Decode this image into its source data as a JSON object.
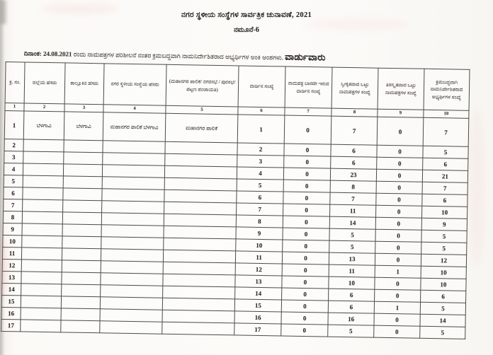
{
  "page": {
    "title": "ನಗರ ಸ್ಥಳೀಯ ಸಂಸ್ಥೆಗಳ ಸಾರ್ವತ್ರಿಕ ಚುನಾವಣೆ, 2021",
    "form_no": "ನಮೂನೆ-6",
    "date_label": "ದಿನಾಂಕ:",
    "date_value": "24.08.2021",
    "date_text": "ರಂದು ನಾಮಪತ್ರಗಳ ಪರಿಶೀಲನೆ ನಂತರ ಕ್ರಮಬದ್ಧವಾಗಿ ನಾಮನಿರ್ದೇಶಿತರಾದ ಅಭ್ಯರ್ಥಿಗಳ ಅಂಕಿ ಅಂಶಗಳು.",
    "emphasis": "ವಾರ್ಡುವಾರು"
  },
  "table": {
    "headers": [
      "ಕ್ರ. ಸಂ.",
      "ಜಿಲ್ಲೆಯ ಹೆಸರು",
      "ತಾಲ್ಲೂಕಿನ ಹೆಸರು",
      "ನಗರ ಸ್ಥಳೀಯ ಸಂಸ್ಥೆಯ ಹೆಸರು",
      "(ಮಹಾನಗರ ಪಾಲಿಕೆ/ ನಗರಸಭೆ / ಪುರಸಭೆ/ ಪಟ್ಟಣ ಪಂಚಾಯತಿ)",
      "ವಾರ್ಡಿನ ಸಂಖ್ಯೆ",
      "ನಾಮಪತ್ರ ಬಾರದೇ ಇರುವ ವಾರ್ಡಿನ ಸಂಖ್ಯೆ",
      "ಸ್ವೀಕೃತವಾದ ಒಟ್ಟು ನಾಮಪತ್ರಗಳ ಸಂಖ್ಯೆ",
      "ತಿರಸ್ಕೃತವಾದ ಒಟ್ಟು ನಾಮಪತ್ರಗಳ ಸಂಖ್ಯೆ",
      "ಕ್ರಮಬದ್ಧವಾಗಿ ನಾಮನಿರ್ದೇಶಿತರಾದ ಅಭ್ಯರ್ಥಿಗಳ ಸಂಖ್ಯೆ"
    ],
    "column_numbers": [
      "1",
      "2",
      "3",
      "4",
      "5",
      "6",
      "7",
      "8",
      "9",
      "10"
    ],
    "rows": [
      [
        "1",
        "ಬೆಳಗಾವಿ",
        "ಬೆಳಗಾವಿ",
        "ಮಹಾನಗರ ಪಾಲಿಕೆ ಬೆಳಗಾವಿ",
        "ಮಹಾನಗರ ಪಾಲಿಕೆ",
        "1",
        "0",
        "7",
        "0",
        "7"
      ],
      [
        "2",
        "",
        "",
        "",
        "",
        "2",
        "0",
        "6",
        "0",
        "5"
      ],
      [
        "3",
        "",
        "",
        "",
        "",
        "3",
        "0",
        "6",
        "0",
        "6"
      ],
      [
        "4",
        "",
        "",
        "",
        "",
        "4",
        "0",
        "23",
        "0",
        "21"
      ],
      [
        "5",
        "",
        "",
        "",
        "",
        "5",
        "0",
        "8",
        "0",
        "7"
      ],
      [
        "6",
        "",
        "",
        "",
        "",
        "6",
        "0",
        "7",
        "0",
        "6"
      ],
      [
        "7",
        "",
        "",
        "",
        "",
        "7",
        "0",
        "11",
        "0",
        "10"
      ],
      [
        "8",
        "",
        "",
        "",
        "",
        "8",
        "0",
        "14",
        "0",
        "9"
      ],
      [
        "9",
        "",
        "",
        "",
        "",
        "9",
        "0",
        "5",
        "0",
        "5"
      ],
      [
        "10",
        "",
        "",
        "",
        "",
        "10",
        "0",
        "5",
        "0",
        "5"
      ],
      [
        "11",
        "",
        "",
        "",
        "",
        "11",
        "0",
        "13",
        "0",
        "12"
      ],
      [
        "12",
        "",
        "",
        "",
        "",
        "12",
        "0",
        "11",
        "1",
        "10"
      ],
      [
        "13",
        "",
        "",
        "",
        "",
        "13",
        "0",
        "10",
        "0",
        "10"
      ],
      [
        "14",
        "",
        "",
        "",
        "",
        "14",
        "0",
        "6",
        "0",
        "6"
      ],
      [
        "15",
        "",
        "",
        "",
        "",
        "15",
        "0",
        "6",
        "1",
        "5"
      ],
      [
        "16",
        "",
        "",
        "",
        "",
        "16",
        "0",
        "16",
        "0",
        "14"
      ],
      [
        "17",
        "",
        "",
        "",
        "",
        "17",
        "0",
        "5",
        "0",
        "5"
      ]
    ]
  }
}
